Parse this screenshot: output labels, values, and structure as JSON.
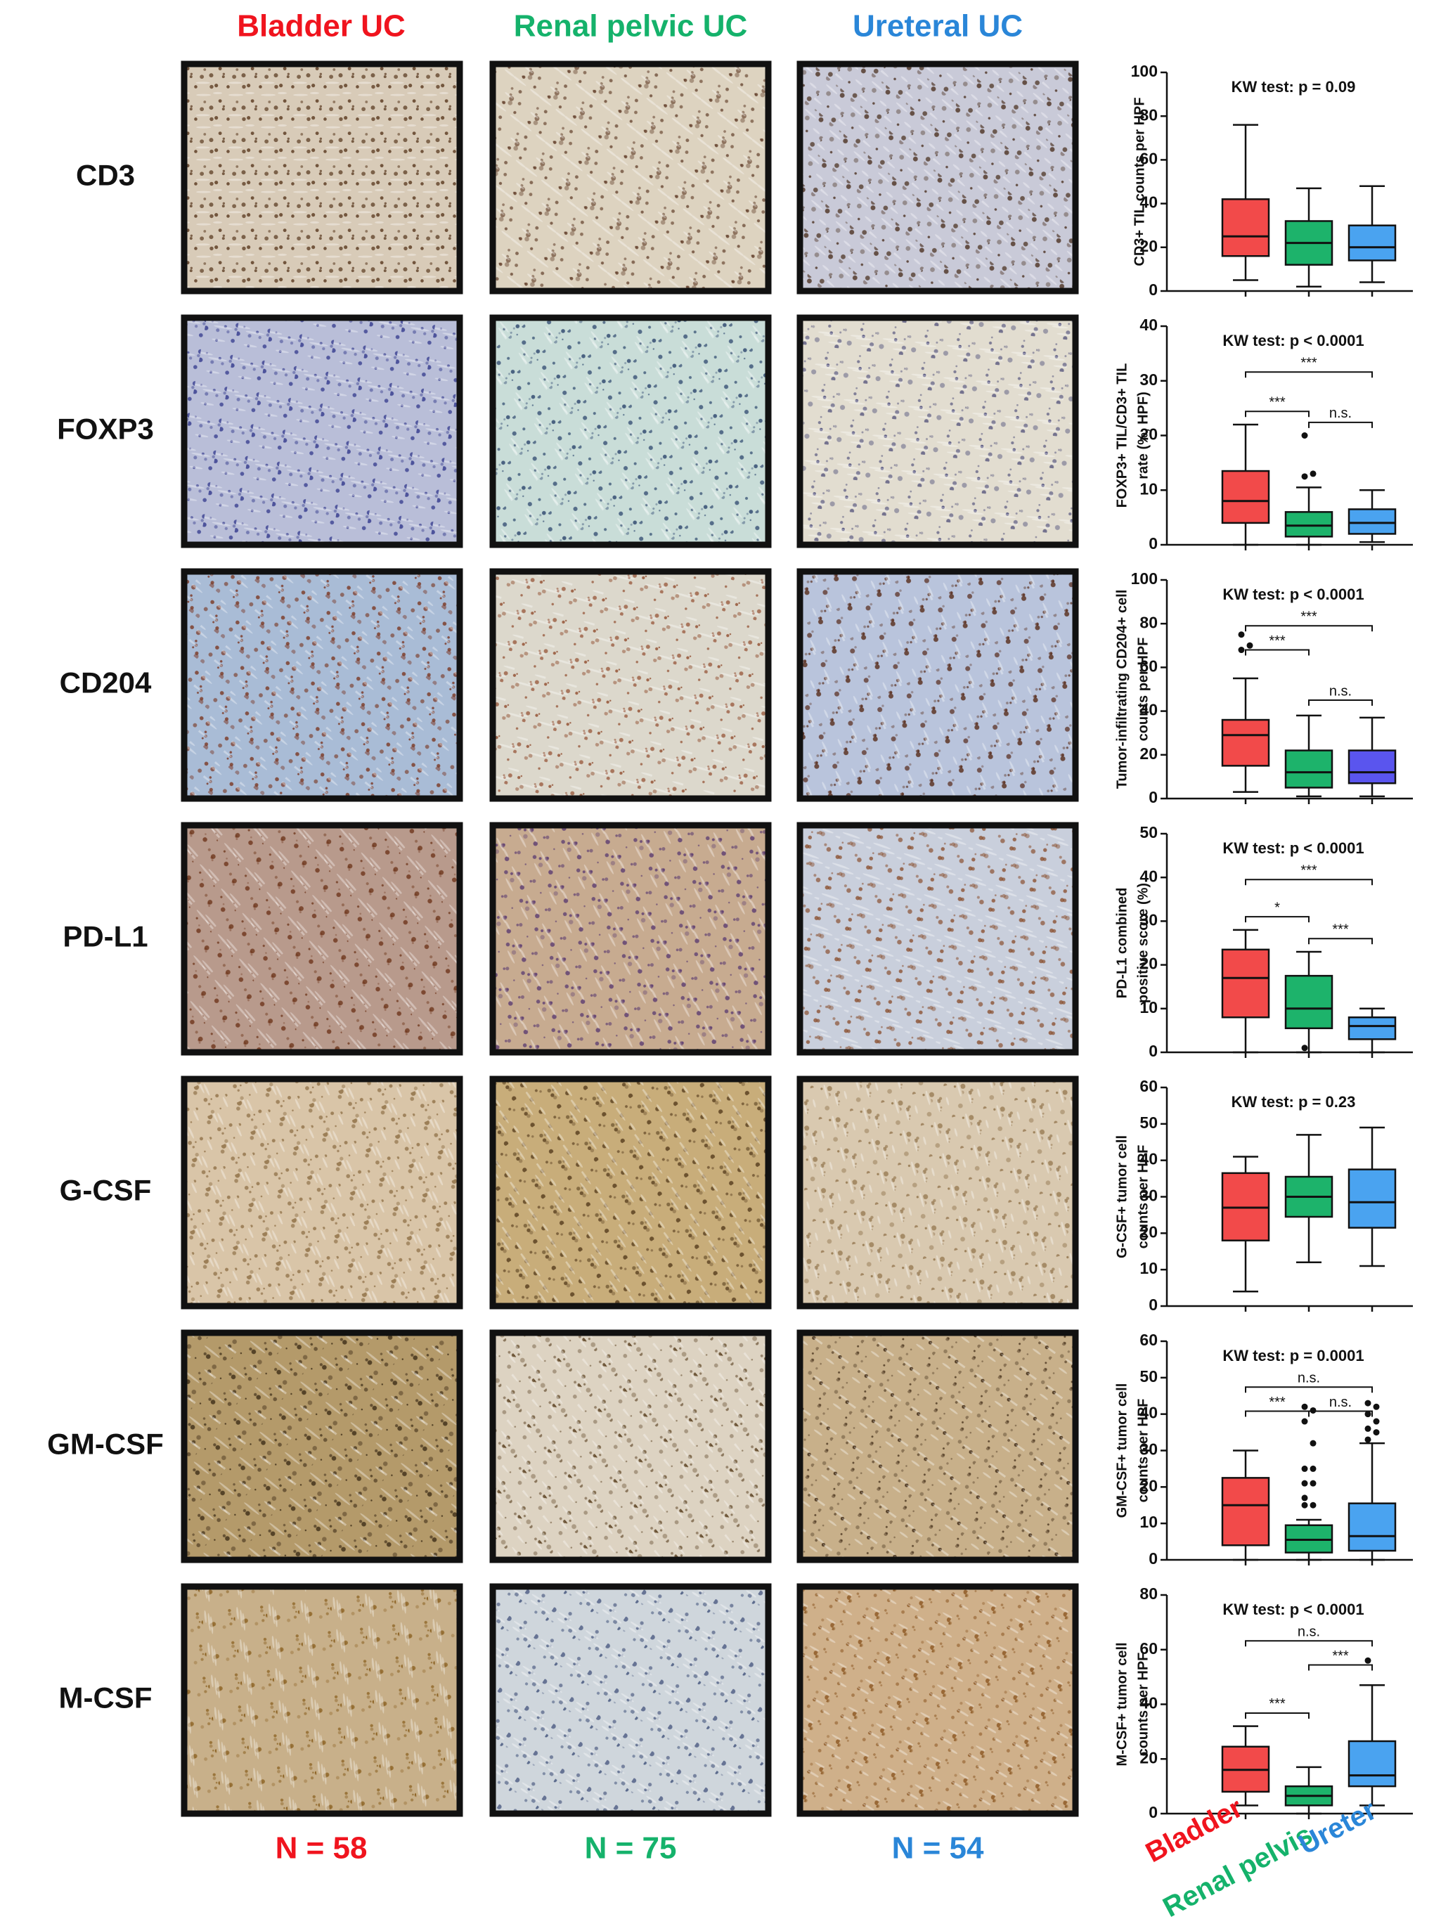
{
  "columns": [
    {
      "label": "Bladder UC",
      "color": "#f0141e"
    },
    {
      "label": "Renal pelvic UC",
      "color": "#15b26b"
    },
    {
      "label": "Ureteral UC",
      "color": "#2a86d8"
    }
  ],
  "rows": [
    "CD3",
    "FOXP3",
    "CD204",
    "PD-L1",
    "G-CSF",
    "GM-CSF",
    "M-CSF"
  ],
  "n_labels": [
    "N = 58",
    "N = 75",
    "N = 54"
  ],
  "groups": [
    {
      "label": "Bladder",
      "color": "#f0141e"
    },
    {
      "label": "Renal pelvis",
      "color": "#15b26b"
    },
    {
      "label": "Ureter",
      "color": "#2a86d8"
    }
  ],
  "chart_data": [
    {
      "type": "box",
      "annotation": "KW test: p = 0.09",
      "ylabel": [
        "CD3+ TIL counts per HPF"
      ],
      "ylim": [
        0,
        100
      ],
      "yticks": [
        0,
        20,
        40,
        60,
        80,
        100
      ],
      "boxes": [
        {
          "color": "#f24a4a",
          "whisker_low": 5,
          "q1": 16,
          "median": 25,
          "q3": 42,
          "whisker_high": 76,
          "outliers": []
        },
        {
          "color": "#1db36b",
          "whisker_low": 2,
          "q1": 12,
          "median": 22,
          "q3": 32,
          "whisker_high": 47,
          "outliers": []
        },
        {
          "color": "#4aa3f0",
          "whisker_low": 4,
          "q1": 14,
          "median": 20,
          "q3": 30,
          "whisker_high": 48,
          "outliers": []
        }
      ],
      "comparisons": []
    },
    {
      "type": "box",
      "annotation": "KW test: p < 0.0001",
      "ylabel": [
        "FOXP3+ TIL/CD3+ TIL",
        "rate (%, HPF)"
      ],
      "ylim": [
        0,
        40
      ],
      "yticks": [
        0,
        10,
        20,
        30,
        40
      ],
      "boxes": [
        {
          "color": "#f24a4a",
          "whisker_low": 0,
          "q1": 4,
          "median": 8,
          "q3": 13.5,
          "whisker_high": 22,
          "outliers": []
        },
        {
          "color": "#1db36b",
          "whisker_low": 0,
          "q1": 1.5,
          "median": 3.5,
          "q3": 6,
          "whisker_high": 10.5,
          "outliers": [
            12.5,
            13,
            20
          ]
        },
        {
          "color": "#4aa3f0",
          "whisker_low": 0.5,
          "q1": 2,
          "median": 4,
          "q3": 6.5,
          "whisker_high": 10,
          "outliers": []
        }
      ],
      "comparisons": [
        {
          "pair": [
            0,
            1
          ],
          "label": "***"
        },
        {
          "pair": [
            0,
            2
          ],
          "label": "***"
        },
        {
          "pair": [
            1,
            2
          ],
          "label": "n.s."
        }
      ]
    },
    {
      "type": "box",
      "annotation": "KW test: p < 0.0001",
      "ylabel": [
        "Tumor-infiltrating CD204+ cell",
        "counts per HPF"
      ],
      "ylim": [
        0,
        100
      ],
      "yticks": [
        0,
        20,
        40,
        60,
        80,
        100
      ],
      "boxes": [
        {
          "color": "#f24a4a",
          "whisker_low": 3,
          "q1": 15,
          "median": 29,
          "q3": 36,
          "whisker_high": 55,
          "outliers": [
            68,
            70,
            75
          ]
        },
        {
          "color": "#1db36b",
          "whisker_low": 1,
          "q1": 5,
          "median": 12,
          "q3": 22,
          "whisker_high": 38,
          "outliers": []
        },
        {
          "color": "#5a55ee",
          "whisker_low": 1,
          "q1": 7,
          "median": 12,
          "q3": 22,
          "whisker_high": 37,
          "outliers": []
        }
      ],
      "comparisons": [
        {
          "pair": [
            0,
            1
          ],
          "label": "***"
        },
        {
          "pair": [
            0,
            2
          ],
          "label": "***"
        },
        {
          "pair": [
            1,
            2
          ],
          "label": "n.s."
        }
      ]
    },
    {
      "type": "box",
      "annotation": "KW test: p < 0.0001",
      "ylabel": [
        "PD-L1 combined",
        "positive score (%)"
      ],
      "ylim": [
        0,
        50
      ],
      "yticks": [
        0,
        10,
        20,
        30,
        40,
        50
      ],
      "boxes": [
        {
          "color": "#f24a4a",
          "whisker_low": 0,
          "q1": 8,
          "median": 17,
          "q3": 23.5,
          "whisker_high": 28,
          "outliers": []
        },
        {
          "color": "#1db36b",
          "whisker_low": 0,
          "q1": 5.5,
          "median": 10,
          "q3": 17.5,
          "whisker_high": 23,
          "outliers": [
            1
          ]
        },
        {
          "color": "#4aa3f0",
          "whisker_low": 0,
          "q1": 3,
          "median": 6,
          "q3": 8,
          "whisker_high": 10,
          "outliers": []
        }
      ],
      "comparisons": [
        {
          "pair": [
            0,
            1
          ],
          "label": "*"
        },
        {
          "pair": [
            0,
            2
          ],
          "label": "***"
        },
        {
          "pair": [
            1,
            2
          ],
          "label": "***"
        }
      ]
    },
    {
      "type": "box",
      "annotation": "KW test: p = 0.23",
      "ylabel": [
        "G-CSF+ tumor cell",
        "counts per HPF"
      ],
      "ylim": [
        0,
        60
      ],
      "yticks": [
        0,
        10,
        20,
        30,
        40,
        50,
        60
      ],
      "boxes": [
        {
          "color": "#f24a4a",
          "whisker_low": 4,
          "q1": 18,
          "median": 27,
          "q3": 36.5,
          "whisker_high": 41,
          "outliers": []
        },
        {
          "color": "#1db36b",
          "whisker_low": 12,
          "q1": 24.5,
          "median": 30,
          "q3": 35.5,
          "whisker_high": 47,
          "outliers": []
        },
        {
          "color": "#4aa3f0",
          "whisker_low": 11,
          "q1": 21.5,
          "median": 28.5,
          "q3": 37.5,
          "whisker_high": 49,
          "outliers": []
        }
      ],
      "comparisons": []
    },
    {
      "type": "box",
      "annotation": "KW test: p = 0.0001",
      "ylabel": [
        "GM-CSF+ tumor cell",
        "counts per HPF"
      ],
      "ylim": [
        0,
        60
      ],
      "yticks": [
        0,
        10,
        20,
        30,
        40,
        50,
        60
      ],
      "boxes": [
        {
          "color": "#f24a4a",
          "whisker_low": 0,
          "q1": 4,
          "median": 15,
          "q3": 22.5,
          "whisker_high": 30,
          "outliers": []
        },
        {
          "color": "#1db36b",
          "whisker_low": 0,
          "q1": 2,
          "median": 5.5,
          "q3": 9.5,
          "whisker_high": 11,
          "outliers": [
            15,
            15,
            17,
            21,
            21,
            25,
            25,
            32,
            38,
            41,
            42
          ]
        },
        {
          "color": "#4aa3f0",
          "whisker_low": 0,
          "q1": 2.5,
          "median": 6.5,
          "q3": 15.5,
          "whisker_high": 32,
          "outliers": [
            33,
            35,
            36,
            38,
            40,
            42,
            43
          ]
        }
      ],
      "comparisons": [
        {
          "pair": [
            0,
            1
          ],
          "label": "***"
        },
        {
          "pair": [
            0,
            2
          ],
          "label": "n.s."
        },
        {
          "pair": [
            1,
            2
          ],
          "label": "n.s."
        }
      ]
    },
    {
      "type": "box",
      "annotation": "KW test: p < 0.0001",
      "ylabel": [
        "M-CSF+ tumor cell",
        "counts per HPF"
      ],
      "ylim": [
        0,
        80
      ],
      "yticks": [
        0,
        20,
        40,
        60,
        80
      ],
      "boxes": [
        {
          "color": "#f24a4a",
          "whisker_low": 3,
          "q1": 8,
          "median": 16,
          "q3": 24.5,
          "whisker_high": 32,
          "outliers": []
        },
        {
          "color": "#1db36b",
          "whisker_low": 0,
          "q1": 3,
          "median": 6.5,
          "q3": 10,
          "whisker_high": 17,
          "outliers": []
        },
        {
          "color": "#4aa3f0",
          "whisker_low": 3,
          "q1": 10,
          "median": 14,
          "q3": 26.5,
          "whisker_high": 47,
          "outliers": [
            56
          ]
        }
      ],
      "comparisons": [
        {
          "pair": [
            0,
            1
          ],
          "label": "***"
        },
        {
          "pair": [
            0,
            2
          ],
          "label": "n.s."
        },
        {
          "pair": [
            1,
            2
          ],
          "label": "***"
        }
      ]
    }
  ]
}
